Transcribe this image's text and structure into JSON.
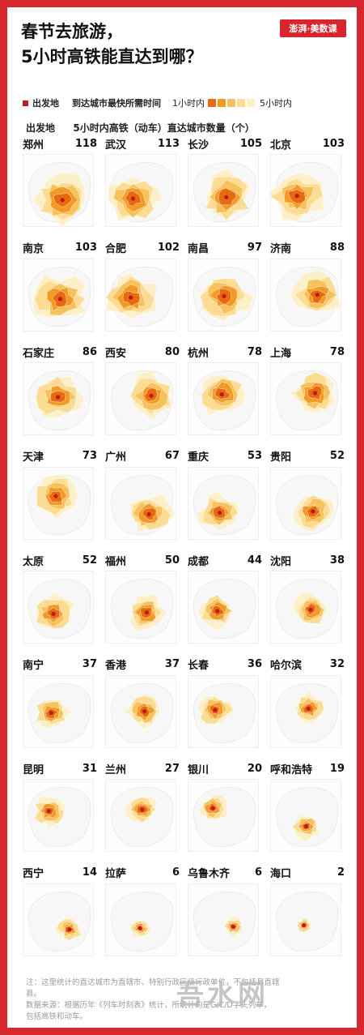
{
  "title_line1": "春节去旅游，",
  "title_line2": "5小时高铁能直达到哪？",
  "logo_text": "澎湃·美数课",
  "legend": {
    "origin_label": "出发地",
    "time_label": "到达城市最快所需时间",
    "min_label": "1小时内",
    "max_label": "5小时内",
    "origin_color": "#c0181f",
    "scale_colors": [
      "#e66b0f",
      "#f29a26",
      "#f7c25c",
      "#fbdc92",
      "#fdf0c9"
    ]
  },
  "subhead": {
    "col1": "出发地",
    "col2": "5小时内高铁（动车）直达城市数量（个）"
  },
  "cities": [
    {
      "name": "郑州",
      "count": "118"
    },
    {
      "name": "武汉",
      "count": "113"
    },
    {
      "name": "长沙",
      "count": "105"
    },
    {
      "name": "北京",
      "count": "103"
    },
    {
      "name": "南京",
      "count": "103"
    },
    {
      "name": "合肥",
      "count": "102"
    },
    {
      "name": "南昌",
      "count": "97"
    },
    {
      "name": "济南",
      "count": "88"
    },
    {
      "name": "石家庄",
      "count": "86"
    },
    {
      "name": "西安",
      "count": "80"
    },
    {
      "name": "杭州",
      "count": "78"
    },
    {
      "name": "上海",
      "count": "78"
    },
    {
      "name": "天津",
      "count": "73"
    },
    {
      "name": "广州",
      "count": "67"
    },
    {
      "name": "重庆",
      "count": "53"
    },
    {
      "name": "贵阳",
      "count": "52"
    },
    {
      "name": "太原",
      "count": "52"
    },
    {
      "name": "福州",
      "count": "50"
    },
    {
      "name": "成都",
      "count": "44"
    },
    {
      "name": "沈阳",
      "count": "38"
    },
    {
      "name": "南宁",
      "count": "37"
    },
    {
      "name": "香港",
      "count": "37"
    },
    {
      "name": "长春",
      "count": "36"
    },
    {
      "name": "哈尔滨",
      "count": "32"
    },
    {
      "name": "昆明",
      "count": "31"
    },
    {
      "name": "兰州",
      "count": "27"
    },
    {
      "name": "银川",
      "count": "20"
    },
    {
      "name": "呼和浩特",
      "count": "19"
    },
    {
      "name": "西宁",
      "count": "14"
    },
    {
      "name": "拉萨",
      "count": "6"
    },
    {
      "name": "乌鲁木齐",
      "count": "6"
    },
    {
      "name": "海口",
      "count": "2"
    }
  ],
  "footnote": {
    "line1": "注：这里统计的直达城市为直辖市、特别行政区级行政单位，不包括县直辖县。",
    "line2": "数据来源：根据历年《列车时刻表》统计，所统计的是G/C/D字头列车，",
    "line3": "包括高铁和动车。"
  },
  "watermark": "吾水网"
}
